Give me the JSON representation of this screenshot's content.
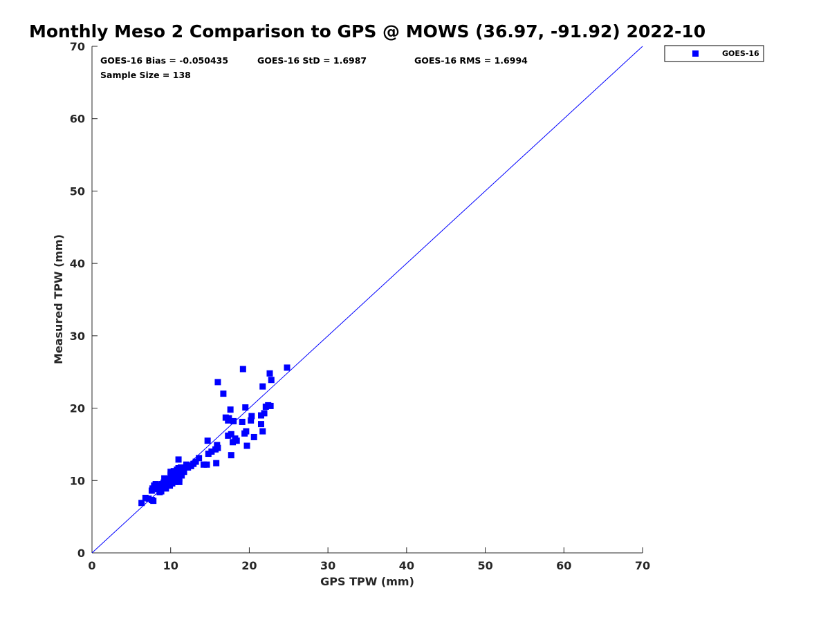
{
  "chart_data": {
    "type": "scatter",
    "title": "Monthly Meso 2 Comparison to GPS @ MOWS (36.97, -91.92) 2022-10",
    "xlabel": "GPS TPW (mm)",
    "ylabel": "Measured TPW (mm)",
    "xlim": [
      0,
      70
    ],
    "ylim": [
      0,
      70
    ],
    "xticks": [
      0,
      10,
      20,
      30,
      40,
      50,
      60,
      70
    ],
    "yticks": [
      0,
      10,
      20,
      30,
      40,
      50,
      60,
      70
    ],
    "grid": false,
    "legend": {
      "position": "outside-top-right",
      "entries": [
        "GOES-16"
      ]
    },
    "stats": {
      "bias": "GOES-16 Bias = -0.050435",
      "std": "GOES-16 StD = 1.6987",
      "rms": "GOES-16 RMS = 1.6994",
      "sample": "Sample Size = 138"
    },
    "reference_line": {
      "label": "1:1",
      "from": [
        0,
        0
      ],
      "to": [
        70,
        70
      ],
      "color": "#0000ff"
    },
    "series": [
      {
        "name": "GOES-16",
        "color": "#0000ff",
        "marker": "square",
        "points": [
          [
            6.3,
            6.9
          ],
          [
            6.8,
            7.6
          ],
          [
            7.2,
            7.5
          ],
          [
            7.6,
            7.3
          ],
          [
            7.8,
            7.2
          ],
          [
            7.6,
            8.6
          ],
          [
            7.7,
            8.9
          ],
          [
            7.9,
            9.3
          ],
          [
            8.1,
            9.5
          ],
          [
            8.3,
            9.1
          ],
          [
            8.4,
            8.8
          ],
          [
            8.6,
            8.4
          ],
          [
            8.7,
            9.3
          ],
          [
            8.8,
            8.5
          ],
          [
            8.9,
            9.5
          ],
          [
            9.0,
            9.0
          ],
          [
            9.1,
            9.7
          ],
          [
            9.2,
            10.3
          ],
          [
            9.3,
            9.2
          ],
          [
            9.4,
            8.9
          ],
          [
            9.5,
            10.0
          ],
          [
            9.6,
            9.5
          ],
          [
            9.7,
            10.2
          ],
          [
            9.8,
            9.7
          ],
          [
            9.9,
            9.3
          ],
          [
            10.0,
            10.8
          ],
          [
            10.0,
            11.2
          ],
          [
            10.1,
            10.0
          ],
          [
            10.2,
            9.6
          ],
          [
            10.3,
            10.4
          ],
          [
            10.4,
            11.3
          ],
          [
            10.5,
            10.1
          ],
          [
            10.6,
            9.8
          ],
          [
            10.7,
            10.6
          ],
          [
            10.8,
            11.5
          ],
          [
            10.9,
            10.9
          ],
          [
            11.0,
            12.9
          ],
          [
            11.0,
            11.7
          ],
          [
            11.1,
            10.3
          ],
          [
            11.1,
            9.8
          ],
          [
            11.2,
            11.1
          ],
          [
            11.3,
            11.8
          ],
          [
            11.4,
            10.7
          ],
          [
            11.5,
            11.5
          ],
          [
            11.7,
            11.2
          ],
          [
            12.0,
            12.2
          ],
          [
            12.2,
            11.8
          ],
          [
            12.6,
            12.0
          ],
          [
            12.9,
            12.3
          ],
          [
            13.2,
            12.6
          ],
          [
            13.6,
            13.1
          ],
          [
            14.2,
            12.2
          ],
          [
            14.6,
            12.2
          ],
          [
            14.8,
            13.7
          ],
          [
            14.7,
            15.5
          ],
          [
            15.2,
            14.0
          ],
          [
            15.7,
            14.3
          ],
          [
            15.9,
            14.9
          ],
          [
            16.0,
            14.5
          ],
          [
            15.8,
            12.4
          ],
          [
            16.0,
            23.6
          ],
          [
            16.7,
            22.0
          ],
          [
            17.0,
            18.7
          ],
          [
            17.3,
            18.3
          ],
          [
            17.4,
            18.6
          ],
          [
            17.6,
            19.8
          ],
          [
            17.3,
            16.2
          ],
          [
            17.7,
            16.4
          ],
          [
            17.9,
            15.3
          ],
          [
            17.7,
            13.5
          ],
          [
            18.2,
            15.8
          ],
          [
            18.4,
            15.5
          ],
          [
            18.0,
            18.2
          ],
          [
            19.2,
            25.4
          ],
          [
            19.1,
            18.1
          ],
          [
            19.5,
            20.1
          ],
          [
            19.4,
            16.5
          ],
          [
            19.6,
            16.8
          ],
          [
            19.7,
            14.8
          ],
          [
            20.2,
            18.3
          ],
          [
            20.3,
            18.9
          ],
          [
            20.6,
            16.0
          ],
          [
            21.5,
            19.0
          ],
          [
            21.5,
            17.8
          ],
          [
            21.7,
            16.8
          ],
          [
            21.7,
            23.0
          ],
          [
            21.9,
            19.3
          ],
          [
            22.1,
            20.2
          ],
          [
            22.4,
            20.4
          ],
          [
            22.6,
            24.8
          ],
          [
            22.8,
            23.9
          ],
          [
            22.7,
            20.3
          ],
          [
            24.8,
            25.6
          ]
        ]
      }
    ]
  }
}
